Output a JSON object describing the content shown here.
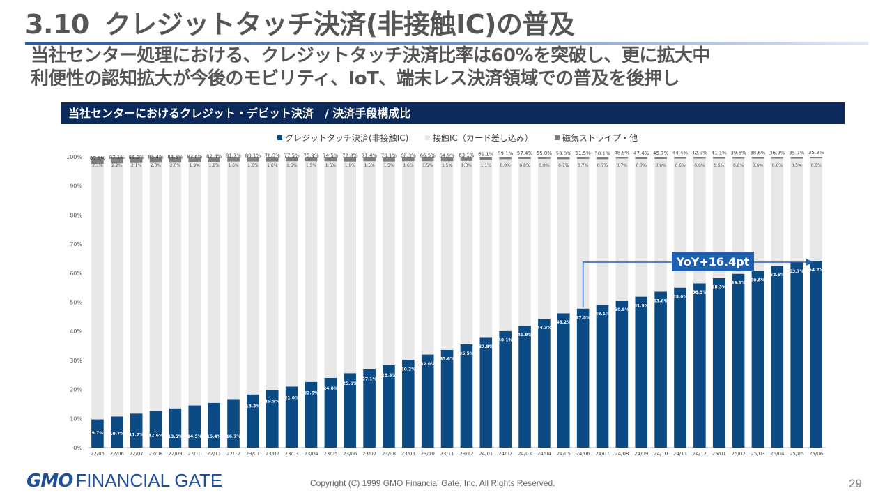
{
  "header": {
    "number": "3.10",
    "title": "クレジットタッチ決済(非接触IC)の普及",
    "subtitle_line1": "当社センター処理における、クレジットタッチ決済比率は60%を突破し、更に拡大中",
    "subtitle_line2": "利便性の認知拡大が今後のモビリティ、IoT、端末レス決済領域での普及を後押し"
  },
  "panel": {
    "title": "当社センターにおけるクレジット・デビット決済　/ 決済手段構成比"
  },
  "chart_data": {
    "type": "bar",
    "stacked": true,
    "categories": [
      "22/05",
      "22/06",
      "22/07",
      "22/08",
      "22/09",
      "22/10",
      "22/11",
      "22/12",
      "23/01",
      "23/02",
      "23/03",
      "23/04",
      "23/05",
      "23/06",
      "23/07",
      "23/08",
      "23/09",
      "23/10",
      "23/11",
      "23/12",
      "24/01",
      "24/02",
      "24/03",
      "24/04",
      "24/05",
      "24/06",
      "24/07",
      "24/08",
      "24/09",
      "24/10",
      "24/11",
      "24/12",
      "25/01",
      "25/02",
      "25/03",
      "25/04",
      "25/05",
      "25/06"
    ],
    "series": [
      {
        "name": "クレジットタッチ決済(非接触IC)",
        "color": "#0b4a83",
        "values": [
          9.7,
          10.7,
          11.7,
          12.6,
          13.5,
          14.5,
          15.4,
          16.7,
          18.3,
          19.9,
          21.0,
          22.6,
          24.0,
          25.6,
          27.1,
          28.3,
          30.2,
          32.0,
          33.6,
          35.5,
          37.8,
          40.1,
          41.9,
          44.3,
          46.2,
          47.8,
          49.1,
          50.5,
          51.9,
          53.6,
          55.0,
          56.5,
          58.3,
          59.8,
          60.8,
          62.5,
          63.7,
          64.2
        ]
      },
      {
        "name": "接触IC（カード差し込み）",
        "color": "#e8e8e8",
        "values": [
          87.9,
          87.1,
          86.2,
          85.4,
          84.5,
          83.6,
          82.8,
          81.7,
          80.1,
          78.5,
          77.5,
          75.9,
          74.5,
          72.8,
          71.4,
          70.1,
          68.3,
          66.5,
          64.9,
          63.1,
          61.1,
          59.1,
          57.4,
          55.0,
          53.0,
          51.5,
          50.1,
          48.9,
          47.4,
          45.7,
          44.4,
          42.9,
          41.1,
          39.6,
          38.6,
          36.9,
          35.7,
          35.3
        ]
      },
      {
        "name": "磁気ストライプ・他",
        "color": "#7f7f7f",
        "values": [
          2.3,
          2.2,
          2.1,
          2.0,
          2.0,
          1.9,
          1.8,
          1.6,
          1.6,
          1.6,
          1.5,
          1.5,
          1.6,
          1.6,
          1.5,
          1.5,
          1.6,
          1.5,
          1.5,
          1.3,
          1.1,
          0.8,
          0.8,
          0.8,
          0.7,
          0.7,
          0.7,
          0.7,
          0.7,
          0.6,
          0.6,
          0.6,
          0.6,
          0.6,
          0.6,
          0.6,
          0.5,
          0.6
        ]
      }
    ],
    "yticks": [
      "0%",
      "10%",
      "20%",
      "30%",
      "40%",
      "50%",
      "60%",
      "70%",
      "80%",
      "90%",
      "100%"
    ],
    "ylim": [
      0,
      100
    ],
    "legend_position": "top-center",
    "annotation": {
      "text": "YoY+16.4pt",
      "from": "24/06",
      "to": "25/06"
    }
  },
  "footer": {
    "logo_gmo": "GMO",
    "logo_fg": "FINANCIAL GATE",
    "copyright": "Copyright (C) 1999 GMO Financial Gate, Inc. All Rights Reserved.",
    "page": "29"
  }
}
